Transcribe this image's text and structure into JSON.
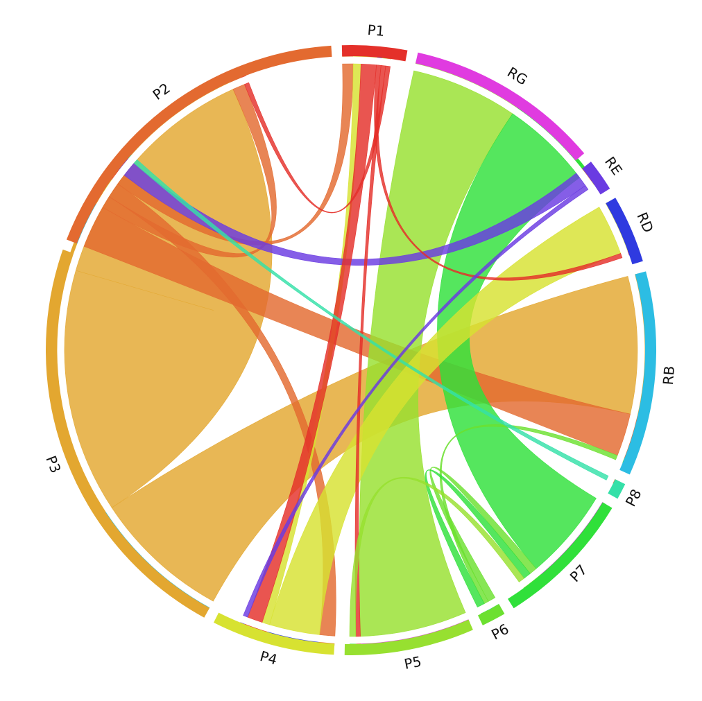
{
  "chart_data": {
    "type": "chord",
    "title": "",
    "segments": [
      {
        "id": "P1",
        "label": "P1",
        "color": "#e4302a",
        "value": 4
      },
      {
        "id": "RG",
        "label": "RG",
        "color": "#e03be0",
        "value": 12
      },
      {
        "id": "RE",
        "label": "RE",
        "color": "#6a3be2",
        "value": 2
      },
      {
        "id": "RD",
        "label": "RD",
        "color": "#2f3ae0",
        "value": 4.2
      },
      {
        "id": "RB",
        "label": "RB",
        "color": "#2cbde3",
        "value": 12.6
      },
      {
        "id": "P8",
        "label": "P8",
        "color": "#35e0a8",
        "value": 1
      },
      {
        "id": "P7",
        "label": "P7",
        "color": "#30e03a",
        "value": 8.6
      },
      {
        "id": "P6",
        "label": "P6",
        "color": "#6ce030",
        "value": 1.5
      },
      {
        "id": "P5",
        "label": "P5",
        "color": "#97e030",
        "value": 8
      },
      {
        "id": "P4",
        "label": "P4",
        "color": "#d7e231",
        "value": 7.6
      },
      {
        "id": "P3",
        "label": "P3",
        "color": "#e3a730",
        "value": 26
      },
      {
        "id": "P2",
        "label": "P2",
        "color": "#e36a30",
        "value": 21
      }
    ],
    "links": [
      {
        "source": "P3",
        "target": "RB",
        "value": 9
      },
      {
        "source": "P3",
        "target": "P3",
        "value": 16
      },
      {
        "source": "P2",
        "target": "RB",
        "value": 2.8
      },
      {
        "source": "P2",
        "target": "P3",
        "value": 0.8
      },
      {
        "source": "P2",
        "target": "P4",
        "value": 1
      },
      {
        "source": "P2",
        "target": "P1",
        "value": 0.7
      },
      {
        "source": "P5",
        "target": "RG",
        "value": 7
      },
      {
        "source": "P7",
        "target": "RG",
        "value": 6
      },
      {
        "source": "P4",
        "target": "RD",
        "value": 3.3
      },
      {
        "source": "P4",
        "target": "P1",
        "value": 0.5
      },
      {
        "source": "RE",
        "target": "P2",
        "value": 1
      },
      {
        "source": "P1",
        "target": "P4",
        "value": 1
      },
      {
        "source": "P1",
        "target": "RD",
        "value": 0.3
      },
      {
        "source": "P1",
        "target": "P5",
        "value": 0.3
      },
      {
        "source": "P6",
        "target": "P7",
        "value": 0.5
      },
      {
        "source": "P6",
        "target": "RB",
        "value": 0.3
      },
      {
        "source": "P8",
        "target": "P2",
        "value": 0.3
      },
      {
        "source": "RE",
        "target": "P4",
        "value": 0.3
      },
      {
        "source": "P7",
        "target": "P6",
        "value": 0.5
      },
      {
        "source": "P1",
        "target": "P3",
        "value": 0.3
      },
      {
        "source": "P5",
        "target": "P7",
        "value": 0.4
      }
    ]
  }
}
